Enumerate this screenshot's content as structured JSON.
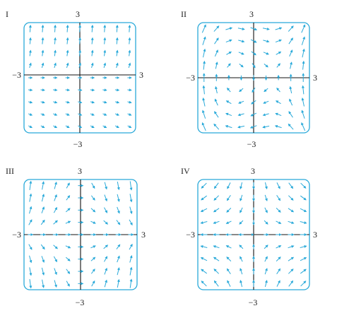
{
  "colors": {
    "frame": "#29a9d9",
    "arrow": "#29a9d9",
    "axis": "#111111",
    "text": "#222222"
  },
  "panels": [
    {
      "id": "I",
      "label": "I",
      "top": "3",
      "bottom": "−3",
      "left": "−3",
      "right": "3",
      "field": "I"
    },
    {
      "id": "II",
      "label": "II",
      "top": "3",
      "bottom": "−3",
      "left": "−3",
      "right": "3",
      "field": "II"
    },
    {
      "id": "III",
      "label": "III",
      "top": "3",
      "bottom": "−3",
      "left": "−3",
      "right": "3",
      "field": "III"
    },
    {
      "id": "IV",
      "label": "IV",
      "top": "3",
      "bottom": "−3",
      "left": "−3",
      "right": "3",
      "field": "IV"
    }
  ]
}
